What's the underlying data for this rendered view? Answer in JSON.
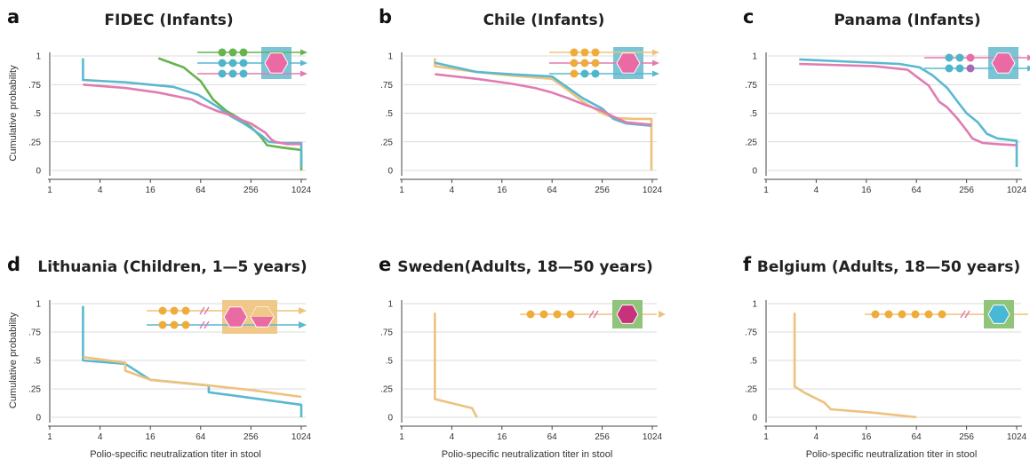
{
  "colors": {
    "green": "#66b34f",
    "blue": "#5ab8cf",
    "pink": "#e07cb1",
    "orange": "#edc27c",
    "dot_orange": "#efac3a",
    "dot_blue": "#4fb5ca",
    "dot_pink": "#e66fa4",
    "dot_purple": "#a56bb0",
    "box_blue": "#7ac4d6",
    "box_orange": "#f0c98a",
    "box_green": "#8fc47a",
    "hex_pink": "#ea6aa3",
    "hex_magenta": "#c8317b",
    "hex_blue": "#48b8d6",
    "grid": "#cfcfcf"
  },
  "axes": {
    "ylabel": "Cumulative probability",
    "xlabel": "Polio-specific neutralization titer in stool",
    "xticks": [
      "1",
      "4",
      "16",
      "64",
      "256",
      "1024"
    ],
    "yticks": [
      "0",
      ".25",
      ".5",
      ".75",
      "1"
    ]
  },
  "chart_data": [
    {
      "panel": "a",
      "title": "FIDEC (Infants)",
      "type": "line",
      "x_scale": "log2",
      "xlim": [
        1,
        1024
      ],
      "ylim": [
        0,
        1
      ],
      "icon": {
        "type": "stack",
        "rows": [
          [
            "dot_green",
            "dot_green",
            "dot_green"
          ],
          [
            "dot_blue",
            "dot_blue",
            "dot_blue"
          ],
          [
            "dot_blue",
            "dot_blue",
            "dot_blue"
          ]
        ],
        "arrows": [
          "green",
          "blue",
          "pink"
        ],
        "box": "box_blue",
        "hexes": [
          "hex_pink"
        ],
        "breaks": false
      },
      "series": [
        {
          "color": "green",
          "points": [
            [
              20,
              0.98
            ],
            [
              40,
              0.9
            ],
            [
              64,
              0.78
            ],
            [
              90,
              0.62
            ],
            [
              130,
              0.52
            ],
            [
              180,
              0.46
            ],
            [
              256,
              0.38
            ],
            [
              330,
              0.3
            ],
            [
              400,
              0.22
            ],
            [
              600,
              0.2
            ],
            [
              1000,
              0.18
            ],
            [
              1024,
              0.18
            ],
            [
              1024,
              0
            ]
          ]
        },
        {
          "color": "blue",
          "points": [
            [
              2.5,
              0.98
            ],
            [
              2.5,
              0.79
            ],
            [
              8,
              0.77
            ],
            [
              30,
              0.73
            ],
            [
              60,
              0.66
            ],
            [
              100,
              0.56
            ],
            [
              150,
              0.47
            ],
            [
              200,
              0.42
            ],
            [
              256,
              0.37
            ],
            [
              350,
              0.3
            ],
            [
              420,
              0.25
            ],
            [
              600,
              0.24
            ],
            [
              1024,
              0.24
            ],
            [
              1024,
              0.03
            ]
          ]
        },
        {
          "color": "pink",
          "points": [
            [
              2.5,
              0.75
            ],
            [
              8,
              0.72
            ],
            [
              20,
              0.68
            ],
            [
              50,
              0.62
            ],
            [
              64,
              0.58
            ],
            [
              100,
              0.52
            ],
            [
              150,
              0.48
            ],
            [
              200,
              0.44
            ],
            [
              256,
              0.41
            ],
            [
              380,
              0.33
            ],
            [
              450,
              0.27
            ],
            [
              500,
              0.25
            ],
            [
              700,
              0.23
            ],
            [
              1024,
              0.23
            ]
          ]
        }
      ]
    },
    {
      "panel": "b",
      "title": "Chile (Infants)",
      "type": "line",
      "x_scale": "log2",
      "xlim": [
        1,
        1024
      ],
      "ylim": [
        0,
        1
      ],
      "icon": {
        "type": "stack",
        "rows": [
          [
            "dot_orange",
            "dot_orange",
            "dot_orange"
          ],
          [
            "dot_orange",
            "dot_orange",
            "dot_orange"
          ],
          [
            "dot_orange",
            "dot_blue",
            "dot_blue"
          ]
        ],
        "arrows": [
          "orange",
          "pink",
          "blue"
        ],
        "box": "box_blue",
        "hexes": [
          "hex_pink"
        ],
        "breaks": false
      },
      "series": [
        {
          "color": "orange",
          "points": [
            [
              2.5,
              0.98
            ],
            [
              2.5,
              0.91
            ],
            [
              8,
              0.86
            ],
            [
              20,
              0.83
            ],
            [
              64,
              0.8
            ],
            [
              100,
              0.7
            ],
            [
              150,
              0.6
            ],
            [
              256,
              0.5
            ],
            [
              350,
              0.46
            ],
            [
              600,
              0.45
            ],
            [
              1000,
              0.45
            ],
            [
              1000,
              0
            ]
          ]
        },
        {
          "color": "blue",
          "points": [
            [
              2.5,
              0.94
            ],
            [
              8,
              0.86
            ],
            [
              20,
              0.84
            ],
            [
              64,
              0.82
            ],
            [
              100,
              0.72
            ],
            [
              150,
              0.63
            ],
            [
              256,
              0.54
            ],
            [
              350,
              0.45
            ],
            [
              500,
              0.41
            ],
            [
              1000,
              0.39
            ]
          ]
        },
        {
          "color": "pink",
          "points": [
            [
              2.5,
              0.84
            ],
            [
              8,
              0.8
            ],
            [
              20,
              0.76
            ],
            [
              40,
              0.72
            ],
            [
              64,
              0.68
            ],
            [
              100,
              0.63
            ],
            [
              150,
              0.58
            ],
            [
              256,
              0.52
            ],
            [
              350,
              0.47
            ],
            [
              500,
              0.42
            ],
            [
              1000,
              0.4
            ]
          ]
        }
      ]
    },
    {
      "panel": "c",
      "title": "Panama (Infants)",
      "type": "line",
      "x_scale": "log2",
      "xlim": [
        1,
        1024
      ],
      "ylim": [
        0,
        1
      ],
      "icon": {
        "type": "stack",
        "rows": [
          [
            "dot_blue",
            "dot_blue",
            "dot_pink"
          ],
          [
            "dot_blue",
            "dot_blue",
            "dot_purple"
          ]
        ],
        "arrows": [
          "pink",
          "blue"
        ],
        "box": "box_blue",
        "hexes": [
          "hex_pink"
        ],
        "breaks": false
      },
      "series": [
        {
          "color": "blue",
          "points": [
            [
              2.5,
              0.97
            ],
            [
              10,
              0.95
            ],
            [
              40,
              0.93
            ],
            [
              70,
              0.9
            ],
            [
              100,
              0.83
            ],
            [
              150,
              0.72
            ],
            [
              200,
              0.6
            ],
            [
              256,
              0.5
            ],
            [
              350,
              0.42
            ],
            [
              450,
              0.32
            ],
            [
              600,
              0.28
            ],
            [
              1024,
              0.26
            ],
            [
              1024,
              0.03
            ]
          ]
        },
        {
          "color": "pink",
          "points": [
            [
              2.5,
              0.93
            ],
            [
              20,
              0.91
            ],
            [
              50,
              0.88
            ],
            [
              64,
              0.82
            ],
            [
              90,
              0.74
            ],
            [
              120,
              0.6
            ],
            [
              150,
              0.55
            ],
            [
              200,
              0.45
            ],
            [
              256,
              0.35
            ],
            [
              300,
              0.28
            ],
            [
              400,
              0.24
            ],
            [
              600,
              0.23
            ],
            [
              1024,
              0.22
            ]
          ]
        }
      ]
    },
    {
      "panel": "d",
      "title": "Lithuania (Children, 1—5 years)",
      "type": "line",
      "x_scale": "log2",
      "xlim": [
        1,
        1024
      ],
      "ylim": [
        0,
        1
      ],
      "icon": {
        "type": "split",
        "rows": [
          [
            "dot_orange",
            "dot_orange",
            "dot_orange"
          ],
          [
            "dot_orange",
            "dot_orange",
            "dot_orange"
          ]
        ],
        "arrows": [
          "orange",
          "blue"
        ],
        "box": "box_orange",
        "hexes": [
          "hex_pink",
          "hex_pink_half"
        ],
        "breaks": true
      },
      "series": [
        {
          "color": "blue",
          "points": [
            [
              2.5,
              0.98
            ],
            [
              2.5,
              0.5
            ],
            [
              8,
              0.47
            ],
            [
              16,
              0.33
            ],
            [
              80,
              0.28
            ],
            [
              80,
              0.22
            ],
            [
              256,
              0.17
            ],
            [
              1024,
              0.11
            ],
            [
              1024,
              0
            ]
          ]
        },
        {
          "color": "orange",
          "points": [
            [
              2.5,
              0.53
            ],
            [
              8,
              0.48
            ],
            [
              8,
              0.41
            ],
            [
              16,
              0.33
            ],
            [
              80,
              0.28
            ],
            [
              256,
              0.24
            ],
            [
              1024,
              0.18
            ]
          ]
        }
      ]
    },
    {
      "panel": "e",
      "title": "Sweden(Adults, 18—50 years)",
      "type": "line",
      "x_scale": "log2",
      "xlim": [
        1,
        1024
      ],
      "ylim": [
        0,
        1
      ],
      "icon": {
        "type": "single",
        "rows": [
          [
            "dot_orange",
            "dot_orange",
            "dot_orange",
            "dot_orange"
          ]
        ],
        "arrows": [
          "orange"
        ],
        "box": "box_green",
        "hexes": [
          "hex_magenta"
        ],
        "breaks": true
      },
      "series": [
        {
          "color": "orange",
          "points": [
            [
              2.5,
              0.92
            ],
            [
              2.5,
              0.16
            ],
            [
              7,
              0.08
            ],
            [
              8,
              0
            ]
          ]
        }
      ]
    },
    {
      "panel": "f",
      "title": "Belgium (Adults, 18—50 years)",
      "type": "line",
      "x_scale": "log2",
      "xlim": [
        1,
        1024
      ],
      "ylim": [
        0,
        1
      ],
      "icon": {
        "type": "single",
        "rows": [
          [
            "dot_orange",
            "dot_orange",
            "dot_orange",
            "dot_orange",
            "dot_orange",
            "dot_orange"
          ]
        ],
        "arrows": [
          "orange"
        ],
        "box": "box_green",
        "hexes": [
          "hex_blue"
        ],
        "breaks": true
      },
      "series": [
        {
          "color": "orange",
          "points": [
            [
              2.2,
              0.92
            ],
            [
              2.2,
              0.27
            ],
            [
              3,
              0.21
            ],
            [
              5,
              0.13
            ],
            [
              6,
              0.07
            ],
            [
              20,
              0.04
            ],
            [
              64,
              0
            ]
          ]
        }
      ]
    }
  ]
}
